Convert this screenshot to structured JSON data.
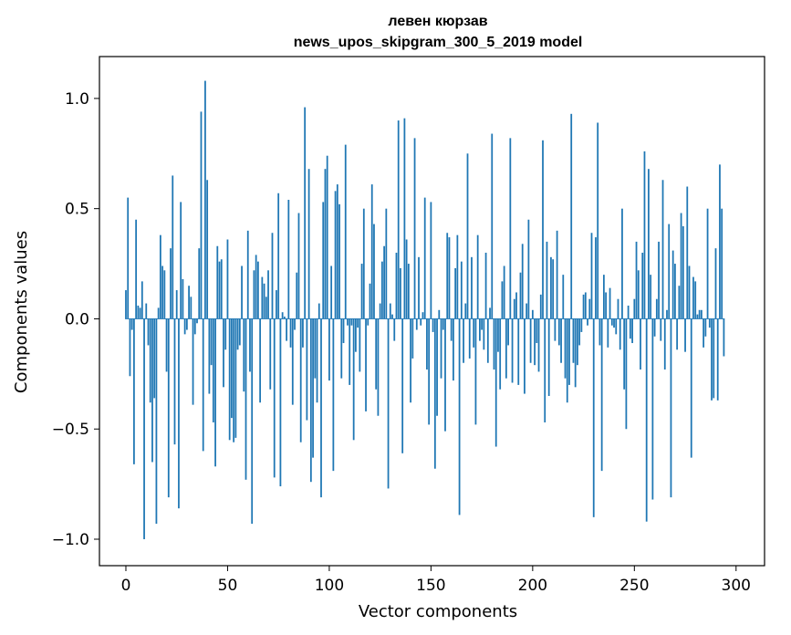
{
  "chart_data": {
    "type": "bar",
    "title": "левен кюрзав",
    "subtitle": "news_upos_skipgram_300_5_2019 model",
    "xlabel": "Vector components",
    "ylabel": "Components values",
    "xlim": [
      -13,
      314
    ],
    "ylim": [
      -1.12,
      1.19
    ],
    "xticks": [
      0,
      50,
      100,
      150,
      200,
      250,
      300
    ],
    "xtick_labels": [
      "0",
      "50",
      "100",
      "150",
      "200",
      "250",
      "300"
    ],
    "yticks": [
      -1.0,
      -0.5,
      0.0,
      0.5,
      1.0
    ],
    "ytick_labels": [
      "−1.0",
      "−0.5",
      "0.0",
      "0.5",
      "1.0"
    ],
    "bar_color": "#1f77b4",
    "grid": false,
    "values": [
      0.13,
      0.55,
      -0.26,
      -0.05,
      -0.66,
      0.45,
      0.06,
      0.05,
      0.17,
      -1.0,
      0.07,
      -0.12,
      -0.38,
      -0.65,
      -0.36,
      -0.93,
      0.05,
      0.38,
      0.24,
      0.22,
      -0.24,
      -0.81,
      0.32,
      0.65,
      -0.57,
      0.13,
      -0.86,
      0.53,
      0.18,
      -0.07,
      -0.05,
      0.15,
      0.1,
      -0.39,
      -0.07,
      -0.02,
      0.32,
      0.94,
      -0.6,
      1.08,
      0.63,
      -0.34,
      -0.21,
      -0.47,
      -0.67,
      0.33,
      0.26,
      0.27,
      -0.31,
      -0.14,
      0.36,
      -0.55,
      -0.45,
      -0.56,
      -0.54,
      -0.14,
      -0.12,
      0.24,
      -0.33,
      -0.73,
      0.4,
      -0.24,
      -0.93,
      0.22,
      0.29,
      0.26,
      -0.38,
      0.19,
      0.16,
      0.1,
      0.22,
      -0.32,
      0.39,
      -0.72,
      0.13,
      0.57,
      -0.76,
      0.03,
      0.01,
      -0.1,
      0.54,
      -0.13,
      -0.39,
      -0.05,
      0.21,
      0.48,
      -0.56,
      -0.13,
      0.96,
      -0.46,
      0.68,
      -0.74,
      -0.63,
      -0.27,
      -0.38,
      0.07,
      -0.81,
      0.53,
      0.68,
      0.74,
      -0.28,
      0.24,
      -0.69,
      0.58,
      0.61,
      0.52,
      -0.27,
      -0.11,
      0.79,
      -0.03,
      -0.3,
      -0.03,
      -0.55,
      -0.15,
      -0.04,
      -0.24,
      0.25,
      0.5,
      -0.42,
      -0.03,
      0.16,
      0.61,
      0.43,
      -0.32,
      -0.44,
      0.07,
      0.26,
      0.33,
      0.5,
      -0.77,
      0.07,
      0.02,
      -0.1,
      0.3,
      0.9,
      0.23,
      -0.61,
      0.91,
      0.36,
      0.25,
      -0.38,
      -0.18,
      0.82,
      -0.05,
      0.28,
      -0.03,
      0.03,
      0.55,
      -0.23,
      -0.48,
      0.53,
      -0.06,
      -0.68,
      -0.44,
      0.04,
      -0.27,
      -0.05,
      -0.51,
      0.39,
      0.37,
      -0.1,
      -0.28,
      0.23,
      0.38,
      -0.89,
      0.26,
      -0.2,
      0.07,
      0.75,
      -0.18,
      0.28,
      -0.13,
      -0.48,
      0.38,
      -0.1,
      -0.05,
      -0.14,
      0.3,
      -0.2,
      0.05,
      0.84,
      -0.23,
      -0.58,
      -0.15,
      -0.32,
      0.17,
      0.24,
      -0.27,
      -0.12,
      0.82,
      -0.29,
      0.09,
      0.12,
      -0.3,
      0.21,
      0.34,
      -0.34,
      0.07,
      0.45,
      -0.2,
      0.04,
      -0.21,
      -0.11,
      -0.24,
      0.11,
      0.81,
      -0.47,
      0.35,
      -0.35,
      0.28,
      0.27,
      -0.1,
      0.4,
      -0.12,
      -0.2,
      0.2,
      -0.27,
      -0.38,
      -0.3,
      0.93,
      -0.2,
      -0.31,
      -0.21,
      -0.12,
      -0.06,
      0.11,
      0.12,
      -0.03,
      0.09,
      0.39,
      -0.9,
      0.37,
      0.89,
      -0.12,
      -0.69,
      0.2,
      0.12,
      -0.13,
      0.14,
      -0.03,
      -0.04,
      -0.07,
      0.09,
      -0.14,
      0.5,
      -0.32,
      -0.5,
      0.06,
      -0.09,
      -0.11,
      0.09,
      0.35,
      0.22,
      -0.23,
      0.3,
      0.76,
      -0.92,
      0.68,
      0.2,
      -0.82,
      -0.08,
      0.09,
      0.35,
      -0.1,
      0.63,
      -0.23,
      0.04,
      0.43,
      -0.81,
      0.31,
      0.25,
      -0.14,
      0.15,
      0.48,
      0.42,
      -0.15,
      0.6,
      0.24,
      -0.63,
      0.19,
      0.17,
      0.02,
      0.04,
      0.04,
      -0.13,
      -0.08,
      0.5,
      -0.04,
      -0.37,
      -0.36,
      0.32,
      -0.37,
      0.7,
      0.5,
      -0.17
    ]
  }
}
